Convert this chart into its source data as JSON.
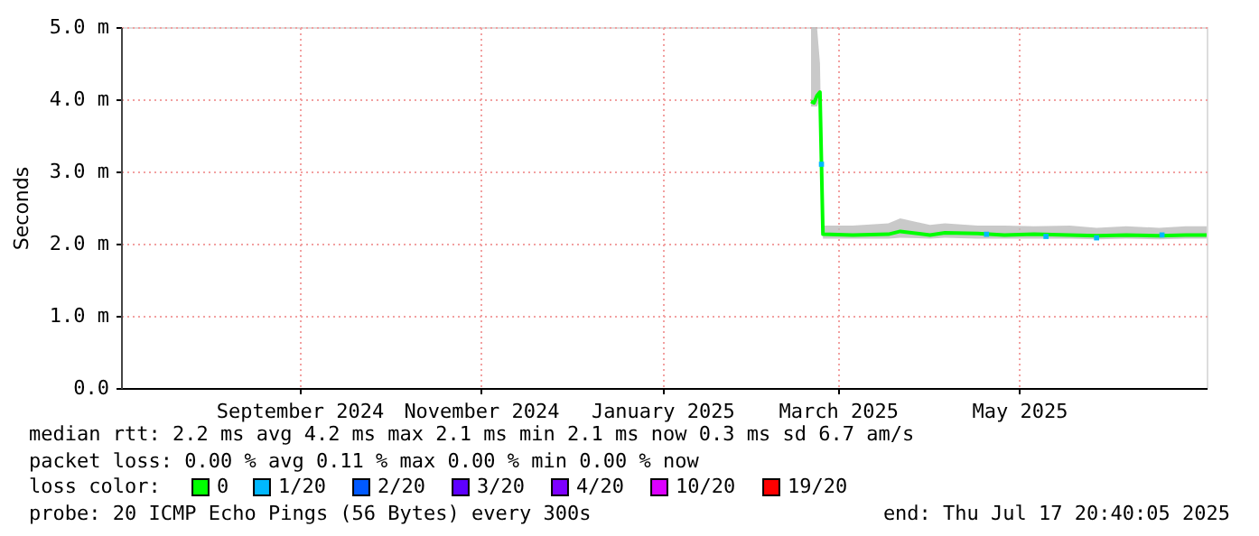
{
  "chart_data": {
    "type": "line",
    "ylabel": "Seconds",
    "xlim": [
      "2024-07-17",
      "2025-07-17"
    ],
    "xticks": [
      {
        "value": "2024-09-15",
        "label": "September 2024"
      },
      {
        "value": "2024-11-15",
        "label": "November 2024"
      },
      {
        "value": "2025-01-15",
        "label": "January 2025"
      },
      {
        "value": "2025-03-15",
        "label": "March 2025"
      },
      {
        "value": "2025-05-15",
        "label": "May 2025"
      }
    ],
    "ylim": [
      0,
      5
    ],
    "yticks": [
      {
        "value": 0,
        "label": "0.0"
      },
      {
        "value": 1,
        "label": "1.0 m"
      },
      {
        "value": 2,
        "label": "2.0 m"
      },
      {
        "value": 3,
        "label": "3.0 m"
      },
      {
        "value": 4,
        "label": "4.0 m"
      },
      {
        "value": 5,
        "label": "5.0 m"
      }
    ],
    "grid": true,
    "legend": "bottom",
    "legend_title": "loss color:",
    "series": [
      {
        "name": "0",
        "color": "#00ff00",
        "type": "line",
        "x": [
          "2025-03-06",
          "2025-03-07",
          "2025-03-08",
          "2025-03-09",
          "2025-03-10",
          "2025-03-20",
          "2025-04-01",
          "2025-04-05",
          "2025-04-15",
          "2025-04-20",
          "2025-05-01",
          "2025-05-10",
          "2025-05-20",
          "2025-06-01",
          "2025-06-10",
          "2025-06-20",
          "2025-07-01",
          "2025-07-10",
          "2025-07-17"
        ],
        "values": [
          3.97,
          3.95,
          4.05,
          4.1,
          2.13,
          2.12,
          2.13,
          2.17,
          2.12,
          2.15,
          2.14,
          2.12,
          2.13,
          2.12,
          2.11,
          2.12,
          2.11,
          2.12,
          2.12
        ],
        "lower": [
          3.9,
          3.9,
          3.9,
          4.0,
          2.07,
          2.07,
          2.07,
          2.08,
          2.07,
          2.08,
          2.07,
          2.07,
          2.07,
          2.07,
          2.06,
          2.07,
          2.06,
          2.07,
          2.07
        ],
        "upper": [
          5.0,
          5.0,
          5.0,
          4.5,
          2.25,
          2.25,
          2.28,
          2.35,
          2.26,
          2.28,
          2.25,
          2.25,
          2.24,
          2.25,
          2.22,
          2.24,
          2.22,
          2.24,
          2.24
        ]
      },
      {
        "name": "1/20",
        "color": "#00b8ff",
        "type": "scatter",
        "x": [
          "2025-03-09T12:00",
          "2025-05-04",
          "2025-05-24",
          "2025-06-10",
          "2025-07-02"
        ],
        "values": [
          3.1,
          2.13,
          2.1,
          2.08,
          2.12
        ]
      },
      {
        "name": "2/20",
        "color": "#0059ff",
        "type": "scatter"
      },
      {
        "name": "3/20",
        "color": "#5e00ff",
        "type": "scatter"
      },
      {
        "name": "4/20",
        "color": "#7e00ff",
        "type": "scatter"
      },
      {
        "name": "10/20",
        "color": "#dd00ff",
        "type": "scatter"
      },
      {
        "name": "19/20",
        "color": "#ff0000",
        "type": "scatter"
      }
    ],
    "annotations": [
      "median rtt:  2.2 ms avg  4.2 ms max  2.1 ms min  2.1 ms now  0.3 ms sd  6.7   am/s",
      "packet loss: 0.00 % avg  0.11 % max  0.00 % min  0.00 % now",
      "probe:       20 ICMP Echo Pings (56 Bytes) every 300s",
      "end: Thu Jul 17 20:40:05 2025"
    ]
  }
}
